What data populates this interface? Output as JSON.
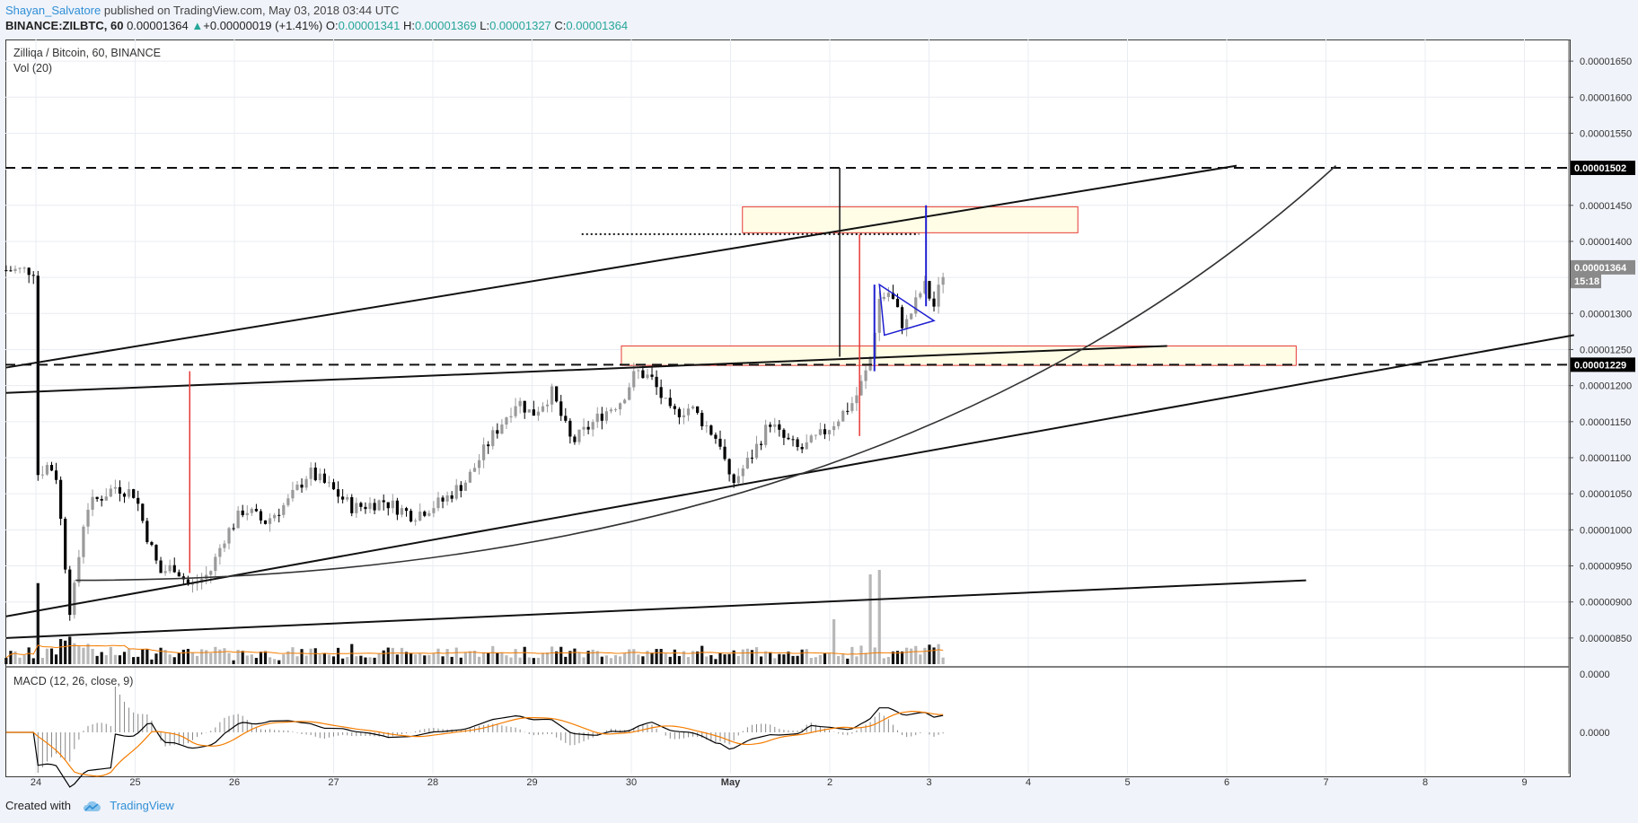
{
  "header": {
    "author": "Shayan_Salvatore",
    "published_text": " published on TradingView.com, May 03, 2018 03:44 UTC"
  },
  "symbol_line": {
    "symbol": "BINANCE:ZILBTC, 60",
    "last": "0.00001364",
    "arrow": "▲",
    "change": "+0.00000019 (+1.41%)",
    "o_label": "O:",
    "o": "0.00001341",
    "h_label": "H:",
    "h": "0.00001369",
    "l_label": "L:",
    "l": "0.00001327",
    "c_label": "C:",
    "c": "0.00001364"
  },
  "panes": {
    "main_title": "Zilliqa / Bitcoin, 60, BINANCE",
    "vol_title": "Vol (20)",
    "macd_title": "MACD (12, 26, close, 9)"
  },
  "footer": {
    "created_with": "Created with",
    "brand": "TradingView"
  },
  "colors": {
    "up_candle": "#9a9a9a",
    "down_candle": "#000000",
    "zone_fill": "#fffde6",
    "zone_border": "#e53935",
    "macd_line": "#000000",
    "signal_line": "#f57c00",
    "vol_ma": "#f57c00",
    "triangle": "#1e1ed2",
    "grid": "#e9ecf2"
  },
  "chart_data": {
    "type": "candlestick",
    "y_axis_labels": [
      "0.00001650",
      "0.00001600",
      "0.00001550",
      "0.00001450",
      "0.00001400",
      "0.00001300",
      "0.00001250",
      "0.00001200",
      "0.00001150",
      "0.00001100",
      "0.00001050",
      "0.00001000",
      "0.00000950",
      "0.00000900",
      "0.00000850"
    ],
    "price_tags": [
      {
        "label": "0.00001502",
        "value": 1.502e-05,
        "style": "dark"
      },
      {
        "label": "0.00001364",
        "value": 1.364e-05,
        "style": "gray"
      },
      {
        "label": "15:18",
        "value": 1.345e-05,
        "style": "gray"
      },
      {
        "label": "0.00001229",
        "value": 1.229e-05,
        "style": "dark"
      }
    ],
    "macd_axis_labels": [
      "0.0000",
      "0.0000"
    ],
    "x_axis_labels": [
      "24",
      "25",
      "26",
      "27",
      "28",
      "29",
      "30",
      "May",
      "2",
      "3",
      "4",
      "5",
      "6",
      "7",
      "8",
      "9"
    ],
    "price_range": [
      8.1e-06,
      1.68e-05
    ],
    "horizontal_levels": [
      1.502e-05,
      1.229e-05
    ],
    "zones": [
      {
        "from_day": 7.12,
        "to_day": 10.5,
        "low": 1.412e-05,
        "high": 1.448e-05
      },
      {
        "from_day": 5.9,
        "to_day": 12.7,
        "low": 1.228e-05,
        "high": 1.255e-05
      }
    ]
  }
}
